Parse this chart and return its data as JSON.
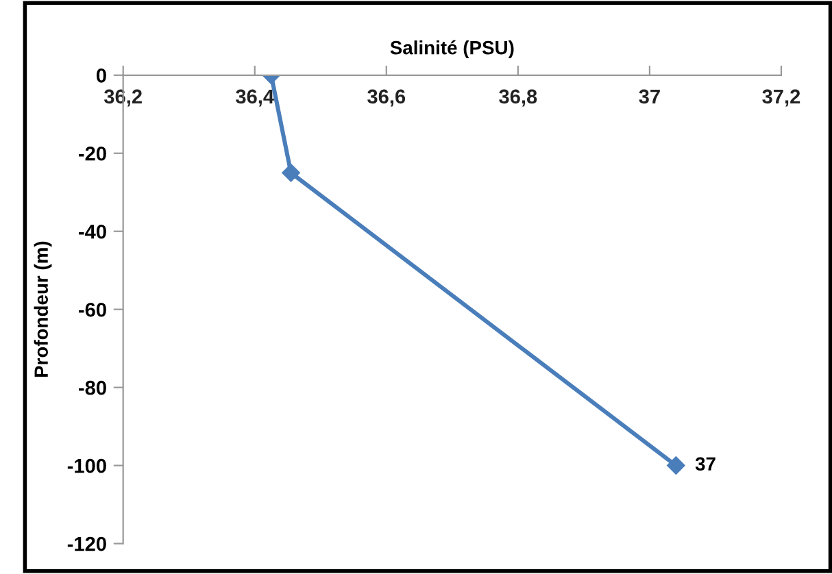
{
  "chart_data": {
    "type": "line",
    "xlabel": "Salinité (PSU)",
    "ylabel": "Profondeur (m)",
    "series": [
      {
        "color": "#4a7ebb",
        "x": [
          36.425,
          36.455,
          37.04
        ],
        "values": [
          0,
          -25,
          -100
        ]
      }
    ],
    "annotations": [
      {
        "text": "37",
        "x": 37.04,
        "y": -100
      }
    ],
    "xlim": [
      36.2,
      37.2
    ],
    "xticks": [
      {
        "value": 36.2,
        "label": "36,2"
      },
      {
        "value": 36.4,
        "label": "36,4"
      },
      {
        "value": 36.6,
        "label": "36,6"
      },
      {
        "value": 36.8,
        "label": "36,8"
      },
      {
        "value": 37,
        "label": "37"
      },
      {
        "value": 37.2,
        "label": "37,2"
      }
    ],
    "ylim": [
      -120,
      0
    ],
    "yticks": [
      0,
      -20,
      -40,
      -60,
      -80,
      -100,
      -120
    ],
    "marker": "diamond",
    "line_style": "solid",
    "grid": false,
    "legend": false
  }
}
